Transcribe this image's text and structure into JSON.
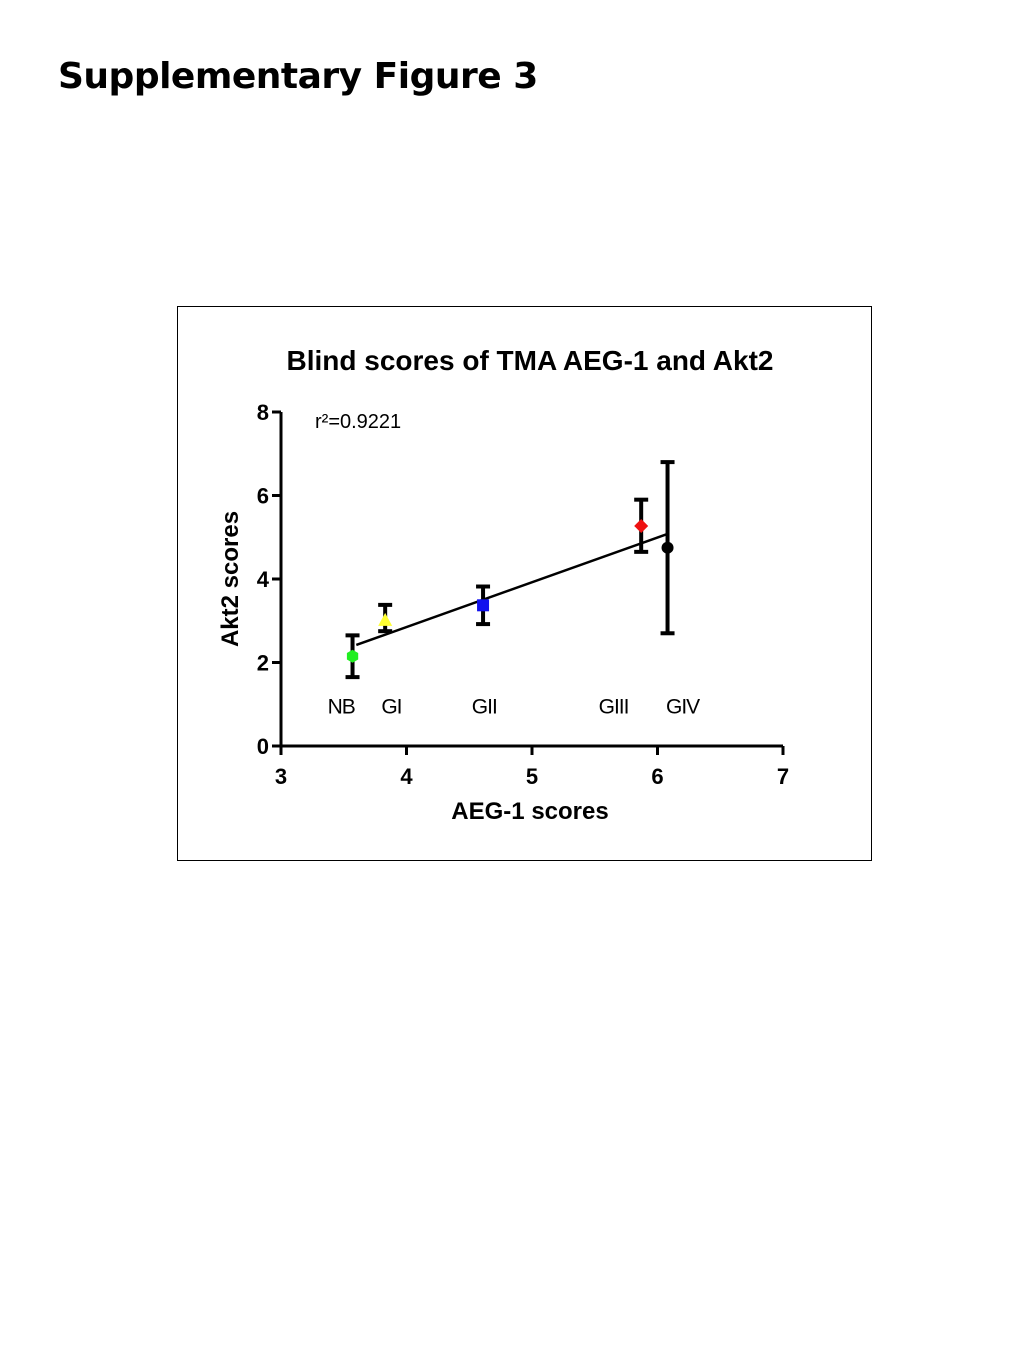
{
  "page": {
    "title": "Supplementary Figure 3"
  },
  "chart_data": {
    "type": "scatter",
    "title": "Blind scores of TMA AEG-1 and Akt2",
    "xlabel": "AEG-1 scores",
    "ylabel": "Akt2 scores",
    "xlim": [
      3,
      7
    ],
    "ylim": [
      0,
      8
    ],
    "xticks": [
      "3",
      "4",
      "5",
      "6",
      "7"
    ],
    "yticks": [
      "0",
      "2",
      "4",
      "6",
      "8"
    ],
    "annotation": "r²=0.9221",
    "grid": false,
    "points": [
      {
        "label": "NB",
        "x": 3.57,
        "y": 2.15,
        "err_low": 1.65,
        "err_high": 2.65,
        "marker": "hexagon",
        "color": "#22ee22"
      },
      {
        "label": "GI",
        "x": 3.83,
        "y": 3.02,
        "err_low": 2.75,
        "err_high": 3.38,
        "marker": "triangle",
        "color": "#ffff33"
      },
      {
        "label": "GII",
        "x": 4.61,
        "y": 3.37,
        "err_low": 2.92,
        "err_high": 3.82,
        "marker": "square",
        "color": "#1111ee"
      },
      {
        "label": "GIII",
        "x": 5.87,
        "y": 5.27,
        "err_low": 4.65,
        "err_high": 5.9,
        "marker": "diamond",
        "color": "#ee1111"
      },
      {
        "label": "GIV",
        "x": 6.08,
        "y": 4.75,
        "err_low": 2.7,
        "err_high": 6.8,
        "marker": "circle",
        "color": "#000000"
      }
    ],
    "category_labels": [
      {
        "text": "NB",
        "x": 3.48,
        "y": 0.95
      },
      {
        "text": "GI",
        "x": 3.88,
        "y": 0.95
      },
      {
        "text": "GII",
        "x": 4.62,
        "y": 0.95
      },
      {
        "text": "GIII",
        "x": 5.65,
        "y": 0.95
      },
      {
        "text": "GIV",
        "x": 6.2,
        "y": 0.95
      }
    ],
    "fit_line": {
      "x1": 3.6,
      "y1": 2.42,
      "x2": 6.08,
      "y2": 5.08
    }
  }
}
